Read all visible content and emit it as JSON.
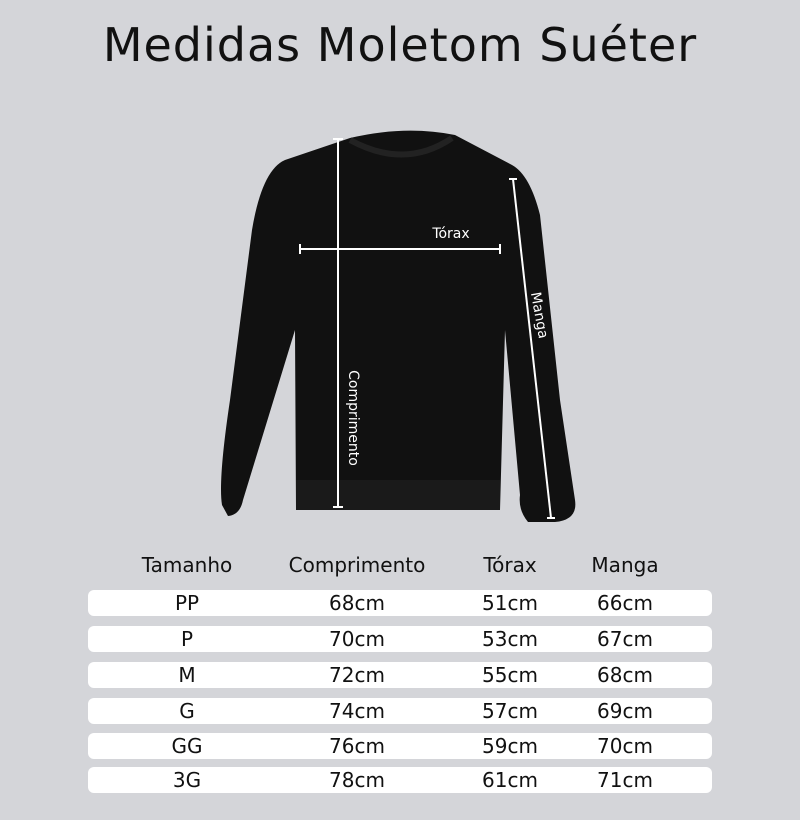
{
  "title": "Medidas Moletom Suéter",
  "figure": {
    "labels": {
      "chest": "Tórax",
      "length": "Comprimento",
      "sleeve": "Manga"
    },
    "garment_color": "#111111"
  },
  "table": {
    "headers": [
      "Tamanho",
      "Comprimento",
      "Tórax",
      "Manga"
    ],
    "rows": [
      [
        "PP",
        "68cm",
        "51cm",
        "66cm"
      ],
      [
        "P",
        "70cm",
        "53cm",
        "67cm"
      ],
      [
        "M",
        "72cm",
        "55cm",
        "68cm"
      ],
      [
        "G",
        "74cm",
        "57cm",
        "69cm"
      ],
      [
        "GG",
        "76cm",
        "59cm",
        "70cm"
      ],
      [
        "3G",
        "78cm",
        "61cm",
        "71cm"
      ]
    ]
  }
}
